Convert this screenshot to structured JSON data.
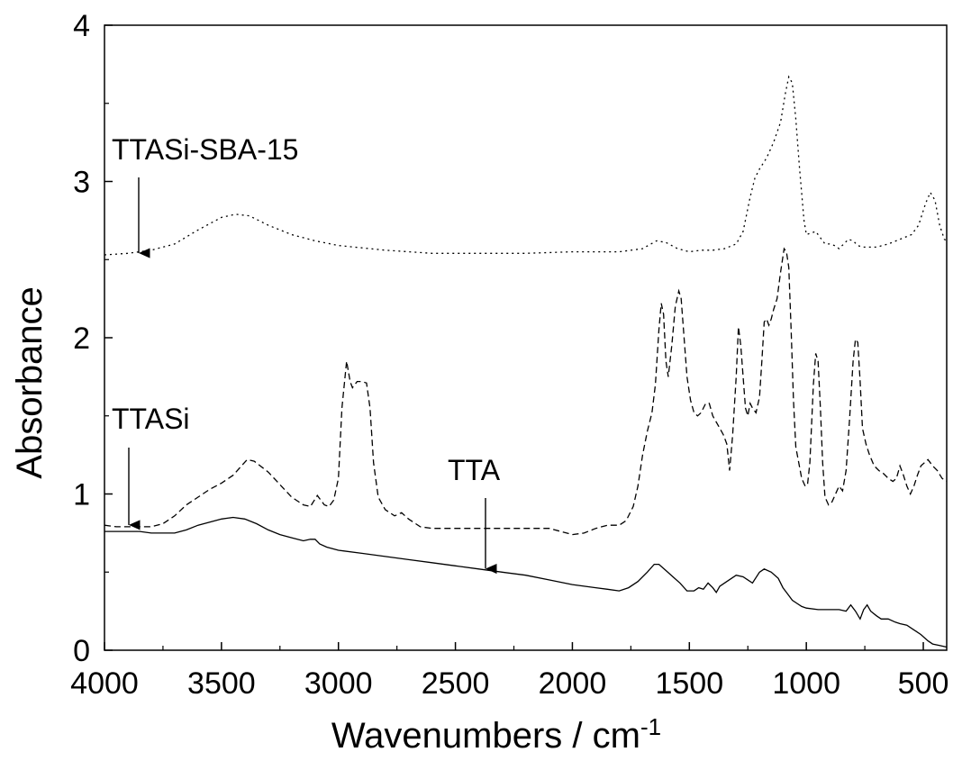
{
  "chart_data": {
    "type": "line",
    "title": "",
    "xlabel": "Wavenumbers / cm",
    "xlabel_superscript": "-1",
    "ylabel": "Absorbance",
    "xlim": [
      4000,
      400
    ],
    "ylim": [
      0,
      4
    ],
    "x_reversed": true,
    "grid": false,
    "x_ticks": [
      4000,
      3500,
      3000,
      2500,
      2000,
      1500,
      1000,
      500
    ],
    "x_tick_labels": [
      "4000",
      "3500",
      "3000",
      "2500",
      "2000",
      "1500",
      "1000",
      "500"
    ],
    "y_ticks": [
      0,
      1,
      2,
      3,
      4
    ],
    "y_tick_labels": [
      "0",
      "1",
      "2",
      "3",
      "4"
    ],
    "series": [
      {
        "name": "TTASi-SBA-15",
        "style": "dotted",
        "points": [
          [
            4000,
            2.53
          ],
          [
            3900,
            2.54
          ],
          [
            3800,
            2.56
          ],
          [
            3700,
            2.6
          ],
          [
            3600,
            2.69
          ],
          [
            3500,
            2.77
          ],
          [
            3440,
            2.79
          ],
          [
            3380,
            2.78
          ],
          [
            3300,
            2.72
          ],
          [
            3200,
            2.66
          ],
          [
            3100,
            2.62
          ],
          [
            3000,
            2.59
          ],
          [
            2800,
            2.56
          ],
          [
            2600,
            2.54
          ],
          [
            2400,
            2.54
          ],
          [
            2200,
            2.54
          ],
          [
            2000,
            2.55
          ],
          [
            1800,
            2.55
          ],
          [
            1700,
            2.57
          ],
          [
            1640,
            2.62
          ],
          [
            1600,
            2.61
          ],
          [
            1550,
            2.57
          ],
          [
            1500,
            2.55
          ],
          [
            1450,
            2.56
          ],
          [
            1400,
            2.56
          ],
          [
            1350,
            2.57
          ],
          [
            1300,
            2.6
          ],
          [
            1270,
            2.68
          ],
          [
            1240,
            2.9
          ],
          [
            1220,
            3.02
          ],
          [
            1200,
            3.08
          ],
          [
            1170,
            3.15
          ],
          [
            1140,
            3.25
          ],
          [
            1110,
            3.38
          ],
          [
            1090,
            3.56
          ],
          [
            1075,
            3.67
          ],
          [
            1060,
            3.63
          ],
          [
            1045,
            3.4
          ],
          [
            1030,
            3.1
          ],
          [
            1010,
            2.75
          ],
          [
            1000,
            2.66
          ],
          [
            980,
            2.67
          ],
          [
            960,
            2.68
          ],
          [
            940,
            2.64
          ],
          [
            920,
            2.6
          ],
          [
            900,
            2.6
          ],
          [
            880,
            2.59
          ],
          [
            860,
            2.57
          ],
          [
            840,
            2.6
          ],
          [
            820,
            2.63
          ],
          [
            800,
            2.62
          ],
          [
            780,
            2.59
          ],
          [
            760,
            2.58
          ],
          [
            700,
            2.58
          ],
          [
            650,
            2.6
          ],
          [
            600,
            2.63
          ],
          [
            550,
            2.66
          ],
          [
            520,
            2.72
          ],
          [
            490,
            2.86
          ],
          [
            470,
            2.93
          ],
          [
            450,
            2.88
          ],
          [
            430,
            2.72
          ],
          [
            410,
            2.63
          ],
          [
            400,
            2.62
          ]
        ]
      },
      {
        "name": "TTASi",
        "style": "dashed",
        "points": [
          [
            4000,
            0.8
          ],
          [
            3950,
            0.79
          ],
          [
            3900,
            0.79
          ],
          [
            3850,
            0.79
          ],
          [
            3800,
            0.79
          ],
          [
            3750,
            0.81
          ],
          [
            3700,
            0.86
          ],
          [
            3650,
            0.93
          ],
          [
            3600,
            0.98
          ],
          [
            3550,
            1.03
          ],
          [
            3500,
            1.07
          ],
          [
            3450,
            1.12
          ],
          [
            3420,
            1.17
          ],
          [
            3390,
            1.22
          ],
          [
            3360,
            1.21
          ],
          [
            3300,
            1.14
          ],
          [
            3250,
            1.06
          ],
          [
            3200,
            0.98
          ],
          [
            3150,
            0.93
          ],
          [
            3120,
            0.92
          ],
          [
            3090,
            0.99
          ],
          [
            3060,
            0.93
          ],
          [
            3040,
            0.92
          ],
          [
            3020,
            0.96
          ],
          [
            3000,
            1.1
          ],
          [
            2985,
            1.55
          ],
          [
            2965,
            1.85
          ],
          [
            2950,
            1.72
          ],
          [
            2940,
            1.68
          ],
          [
            2920,
            1.72
          ],
          [
            2900,
            1.72
          ],
          [
            2880,
            1.71
          ],
          [
            2865,
            1.55
          ],
          [
            2850,
            1.2
          ],
          [
            2830,
            0.98
          ],
          [
            2800,
            0.9
          ],
          [
            2760,
            0.86
          ],
          [
            2730,
            0.88
          ],
          [
            2700,
            0.84
          ],
          [
            2650,
            0.79
          ],
          [
            2600,
            0.78
          ],
          [
            2500,
            0.78
          ],
          [
            2400,
            0.78
          ],
          [
            2300,
            0.78
          ],
          [
            2200,
            0.78
          ],
          [
            2100,
            0.78
          ],
          [
            2050,
            0.76
          ],
          [
            2000,
            0.74
          ],
          [
            1950,
            0.75
          ],
          [
            1900,
            0.78
          ],
          [
            1850,
            0.8
          ],
          [
            1800,
            0.8
          ],
          [
            1770,
            0.83
          ],
          [
            1740,
            0.92
          ],
          [
            1720,
            1.05
          ],
          [
            1700,
            1.25
          ],
          [
            1680,
            1.4
          ],
          [
            1660,
            1.52
          ],
          [
            1645,
            1.7
          ],
          [
            1630,
            2.05
          ],
          [
            1620,
            2.22
          ],
          [
            1610,
            2.15
          ],
          [
            1600,
            1.85
          ],
          [
            1590,
            1.75
          ],
          [
            1575,
            1.95
          ],
          [
            1560,
            2.2
          ],
          [
            1545,
            2.3
          ],
          [
            1535,
            2.25
          ],
          [
            1520,
            1.95
          ],
          [
            1510,
            1.75
          ],
          [
            1495,
            1.6
          ],
          [
            1480,
            1.52
          ],
          [
            1465,
            1.5
          ],
          [
            1450,
            1.52
          ],
          [
            1430,
            1.58
          ],
          [
            1415,
            1.58
          ],
          [
            1400,
            1.5
          ],
          [
            1385,
            1.46
          ],
          [
            1370,
            1.42
          ],
          [
            1355,
            1.38
          ],
          [
            1340,
            1.32
          ],
          [
            1328,
            1.15
          ],
          [
            1315,
            1.38
          ],
          [
            1300,
            1.75
          ],
          [
            1290,
            2.07
          ],
          [
            1280,
            1.95
          ],
          [
            1270,
            1.75
          ],
          [
            1260,
            1.55
          ],
          [
            1250,
            1.5
          ],
          [
            1240,
            1.58
          ],
          [
            1230,
            1.55
          ],
          [
            1215,
            1.52
          ],
          [
            1200,
            1.62
          ],
          [
            1190,
            1.85
          ],
          [
            1180,
            2.1
          ],
          [
            1170,
            2.12
          ],
          [
            1160,
            2.08
          ],
          [
            1150,
            2.12
          ],
          [
            1140,
            2.18
          ],
          [
            1125,
            2.25
          ],
          [
            1110,
            2.42
          ],
          [
            1095,
            2.57
          ],
          [
            1085,
            2.55
          ],
          [
            1075,
            2.45
          ],
          [
            1065,
            2.05
          ],
          [
            1055,
            1.6
          ],
          [
            1045,
            1.3
          ],
          [
            1035,
            1.22
          ],
          [
            1020,
            1.1
          ],
          [
            1005,
            1.05
          ],
          [
            995,
            1.06
          ],
          [
            985,
            1.2
          ],
          [
            970,
            1.7
          ],
          [
            960,
            1.9
          ],
          [
            950,
            1.85
          ],
          [
            940,
            1.55
          ],
          [
            930,
            1.2
          ],
          [
            920,
            0.98
          ],
          [
            905,
            0.93
          ],
          [
            890,
            0.95
          ],
          [
            875,
            1.0
          ],
          [
            860,
            1.05
          ],
          [
            845,
            1.02
          ],
          [
            830,
            1.15
          ],
          [
            815,
            1.48
          ],
          [
            800,
            1.85
          ],
          [
            790,
            1.99
          ],
          [
            780,
            1.97
          ],
          [
            770,
            1.72
          ],
          [
            760,
            1.42
          ],
          [
            745,
            1.32
          ],
          [
            730,
            1.25
          ],
          [
            710,
            1.18
          ],
          [
            690,
            1.15
          ],
          [
            670,
            1.13
          ],
          [
            650,
            1.1
          ],
          [
            630,
            1.08
          ],
          [
            615,
            1.1
          ],
          [
            600,
            1.18
          ],
          [
            585,
            1.12
          ],
          [
            570,
            1.05
          ],
          [
            555,
            1.0
          ],
          [
            540,
            1.05
          ],
          [
            525,
            1.12
          ],
          [
            510,
            1.18
          ],
          [
            495,
            1.2
          ],
          [
            480,
            1.22
          ],
          [
            460,
            1.18
          ],
          [
            440,
            1.15
          ],
          [
            420,
            1.1
          ],
          [
            400,
            1.08
          ]
        ]
      },
      {
        "name": "TTA",
        "style": "solid",
        "points": [
          [
            4000,
            0.76
          ],
          [
            3950,
            0.76
          ],
          [
            3900,
            0.76
          ],
          [
            3850,
            0.76
          ],
          [
            3800,
            0.75
          ],
          [
            3750,
            0.75
          ],
          [
            3700,
            0.75
          ],
          [
            3650,
            0.77
          ],
          [
            3600,
            0.8
          ],
          [
            3550,
            0.82
          ],
          [
            3500,
            0.84
          ],
          [
            3450,
            0.85
          ],
          [
            3400,
            0.84
          ],
          [
            3350,
            0.81
          ],
          [
            3300,
            0.77
          ],
          [
            3250,
            0.74
          ],
          [
            3200,
            0.72
          ],
          [
            3150,
            0.7
          ],
          [
            3120,
            0.71
          ],
          [
            3100,
            0.71
          ],
          [
            3080,
            0.68
          ],
          [
            3050,
            0.66
          ],
          [
            3000,
            0.64
          ],
          [
            2900,
            0.62
          ],
          [
            2800,
            0.6
          ],
          [
            2700,
            0.58
          ],
          [
            2600,
            0.56
          ],
          [
            2500,
            0.54
          ],
          [
            2400,
            0.52
          ],
          [
            2300,
            0.5
          ],
          [
            2200,
            0.48
          ],
          [
            2100,
            0.45
          ],
          [
            2000,
            0.42
          ],
          [
            1900,
            0.4
          ],
          [
            1850,
            0.39
          ],
          [
            1800,
            0.38
          ],
          [
            1760,
            0.4
          ],
          [
            1720,
            0.44
          ],
          [
            1680,
            0.5
          ],
          [
            1650,
            0.55
          ],
          [
            1630,
            0.55
          ],
          [
            1600,
            0.51
          ],
          [
            1570,
            0.47
          ],
          [
            1540,
            0.43
          ],
          [
            1510,
            0.38
          ],
          [
            1480,
            0.38
          ],
          [
            1460,
            0.4
          ],
          [
            1440,
            0.39
          ],
          [
            1420,
            0.43
          ],
          [
            1400,
            0.4
          ],
          [
            1385,
            0.37
          ],
          [
            1370,
            0.41
          ],
          [
            1350,
            0.43
          ],
          [
            1320,
            0.46
          ],
          [
            1300,
            0.48
          ],
          [
            1270,
            0.47
          ],
          [
            1250,
            0.45
          ],
          [
            1230,
            0.43
          ],
          [
            1200,
            0.5
          ],
          [
            1180,
            0.52
          ],
          [
            1150,
            0.5
          ],
          [
            1120,
            0.46
          ],
          [
            1100,
            0.4
          ],
          [
            1080,
            0.36
          ],
          [
            1060,
            0.32
          ],
          [
            1040,
            0.3
          ],
          [
            1020,
            0.28
          ],
          [
            1000,
            0.27
          ],
          [
            950,
            0.26
          ],
          [
            900,
            0.26
          ],
          [
            860,
            0.26
          ],
          [
            830,
            0.25
          ],
          [
            810,
            0.29
          ],
          [
            790,
            0.25
          ],
          [
            770,
            0.2
          ],
          [
            755,
            0.26
          ],
          [
            740,
            0.29
          ],
          [
            725,
            0.25
          ],
          [
            700,
            0.22
          ],
          [
            680,
            0.2
          ],
          [
            650,
            0.2
          ],
          [
            620,
            0.18
          ],
          [
            600,
            0.17
          ],
          [
            570,
            0.16
          ],
          [
            540,
            0.13
          ],
          [
            510,
            0.1
          ],
          [
            480,
            0.06
          ],
          [
            460,
            0.04
          ],
          [
            430,
            0.03
          ],
          [
            400,
            0.02
          ]
        ]
      }
    ],
    "annotations": [
      {
        "text": "TTASi-SBA-15",
        "arrow_to": [
          3850,
          2.53
        ]
      },
      {
        "text": "TTASi",
        "arrow_to": [
          3890,
          0.79
        ]
      },
      {
        "text": "TTA",
        "arrow_to": [
          2360,
          0.51
        ]
      }
    ]
  }
}
